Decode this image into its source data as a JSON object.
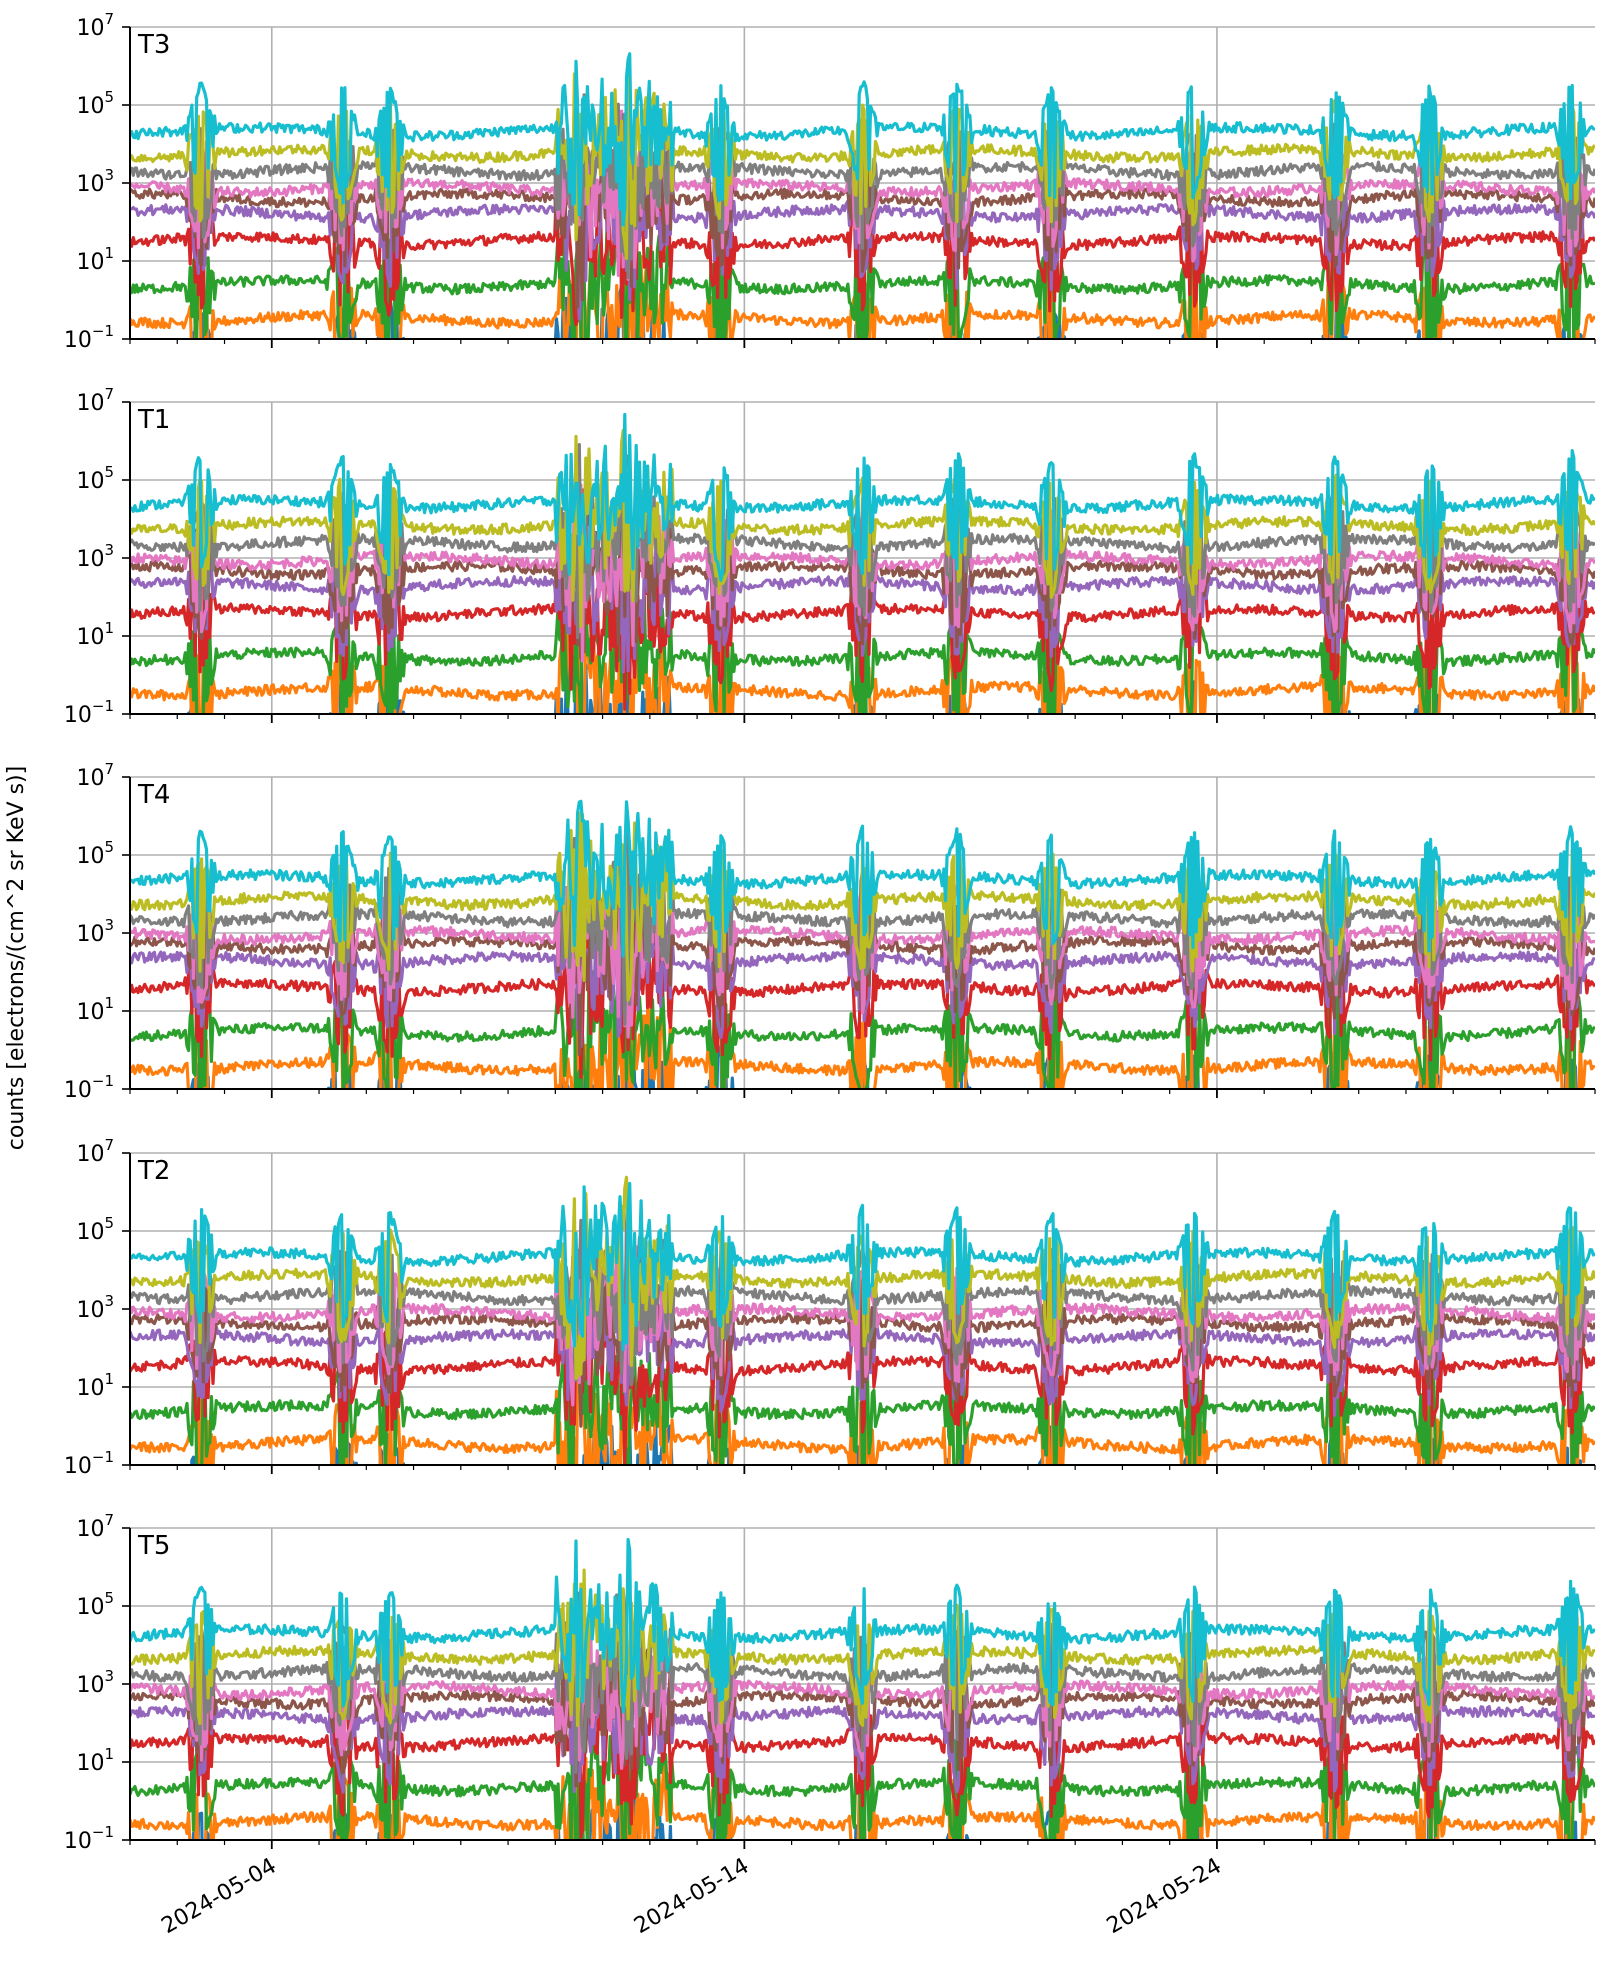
{
  "chart_data": {
    "type": "line",
    "ylabel": "counts [electrons/(cm^2 sr KeV s)]",
    "y_scale": "log",
    "ylim": [
      0.1,
      10000000
    ],
    "y_ticks": [
      {
        "base": "10",
        "exp": "−1",
        "value": 0.1
      },
      {
        "base": "10",
        "exp": "1",
        "value": 10
      },
      {
        "base": "10",
        "exp": "3",
        "value": 1000
      },
      {
        "base": "10",
        "exp": "5",
        "value": 100000
      },
      {
        "base": "10",
        "exp": "7",
        "value": 10000000
      }
    ],
    "xlim": [
      "2024-05-01",
      "2024-06-01"
    ],
    "x_tick_labels": [
      {
        "date": "2024-05-04",
        "label": "2024-05-04"
      },
      {
        "date": "2024-05-14",
        "label": "2024-05-14"
      },
      {
        "date": "2024-05-24",
        "label": "2024-05-24"
      }
    ],
    "grid": true,
    "series_colors": [
      "#1f77b4",
      "#ff7f0e",
      "#2ca02c",
      "#d62728",
      "#9467bd",
      "#8c564b",
      "#e377c2",
      "#7f7f7f",
      "#bcbd22",
      "#17becf"
    ],
    "series_base_levels": [
      0.05,
      0.4,
      3,
      40,
      200,
      500,
      900,
      2500,
      7000,
      25000
    ],
    "spike_dates": [
      "2024-05-02",
      "2024-05-05",
      "2024-05-06",
      "2024-05-10",
      "2024-05-11",
      "2024-05-13",
      "2024-05-16",
      "2024-05-18",
      "2024-05-20",
      "2024-05-23",
      "2024-05-26",
      "2024-05-28",
      "2024-05-31"
    ],
    "storm_period": [
      "2024-05-10",
      "2024-05-12"
    ],
    "panels": [
      {
        "label": "T3",
        "offset": 0.85
      },
      {
        "label": "T1",
        "offset": 1.0
      },
      {
        "label": "T4",
        "offset": 1.0
      },
      {
        "label": "T2",
        "offset": 0.9
      },
      {
        "label": "T5",
        "offset": 0.8
      }
    ]
  }
}
